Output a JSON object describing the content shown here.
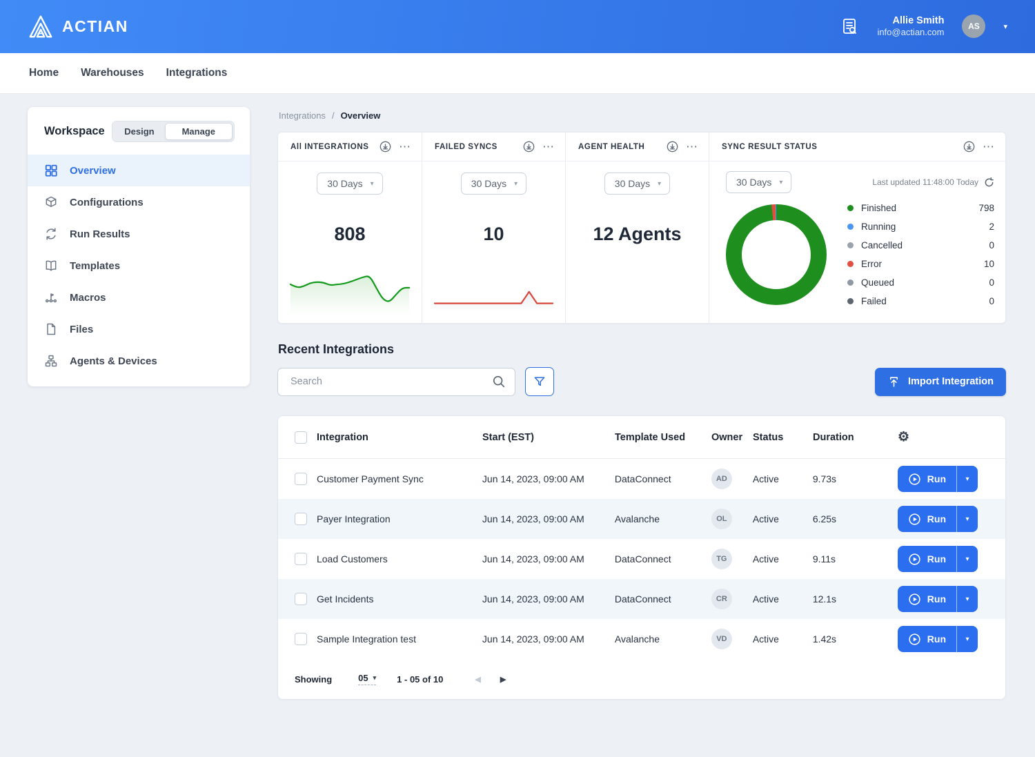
{
  "header": {
    "brand": "ACTIAN",
    "user": {
      "name": "Allie Smith",
      "email": "info@actian.com",
      "initials": "AS"
    }
  },
  "nav": {
    "items": [
      {
        "label": "Home"
      },
      {
        "label": "Warehouses"
      },
      {
        "label": "Integrations"
      }
    ]
  },
  "sidebar": {
    "title": "Workspace",
    "toggle": {
      "options": [
        {
          "label": "Design"
        },
        {
          "label": "Manage"
        }
      ],
      "active": "Manage"
    },
    "items": [
      {
        "label": "Overview",
        "icon": "grid-icon",
        "active": true
      },
      {
        "label": "Configurations",
        "icon": "package-icon",
        "active": false
      },
      {
        "label": "Run Results",
        "icon": "sync-icon",
        "active": false
      },
      {
        "label": "Templates",
        "icon": "book-icon",
        "active": false
      },
      {
        "label": "Macros",
        "icon": "flow-icon",
        "active": false
      },
      {
        "label": "Files",
        "icon": "file-icon",
        "active": false
      },
      {
        "label": "Agents & Devices",
        "icon": "network-icon",
        "active": false
      }
    ]
  },
  "breadcrumb": {
    "parent": "Integrations",
    "separator": "/",
    "current": "Overview"
  },
  "cards": {
    "all_integrations": {
      "title": "All INTEGRATIONS",
      "period": "30 Days",
      "value": "808"
    },
    "failed_syncs": {
      "title": "FAILED SYNCS",
      "period": "30 Days",
      "value": "10"
    },
    "agent_health": {
      "title": "AGENT HEALTH",
      "period": "30 Days",
      "value": "12 Agents"
    },
    "sync_result_status": {
      "title": "SYNC RESULT STATUS",
      "period": "30 Days",
      "last_updated": "Last updated 11:48:00 Today",
      "legend": [
        {
          "label": "Finished",
          "value": "798",
          "color": "#1e8e1e"
        },
        {
          "label": "Running",
          "value": "2",
          "color": "#4b96f3"
        },
        {
          "label": "Cancelled",
          "value": "0",
          "color": "#9aa3ad"
        },
        {
          "label": "Error",
          "value": "10",
          "color": "#e04f3f"
        },
        {
          "label": "Queued",
          "value": "0",
          "color": "#8f98a3"
        },
        {
          "label": "Failed",
          "value": "0",
          "color": "#5d6570"
        }
      ]
    }
  },
  "chart_data": [
    {
      "type": "line",
      "name": "all-integrations-sparkline",
      "title": "All Integrations trend (30 Days)",
      "values": [
        0.57,
        0.5,
        0.53,
        0.6,
        0.62,
        0.61,
        0.55,
        0.57,
        0.58,
        0.62,
        0.67,
        0.72,
        0.75,
        0.5,
        0.26,
        0.2,
        0.36,
        0.5,
        0.5
      ],
      "color": "#13991c",
      "fill": "#dcefdb",
      "smooth": true
    },
    {
      "type": "line",
      "name": "failed-syncs-sparkline",
      "title": "Failed Syncs trend (30 Days)",
      "values": [
        0.14,
        0.14,
        0.14,
        0.14,
        0.14,
        0.14,
        0.14,
        0.14,
        0.14,
        0.14,
        0.14,
        0.14,
        0.42,
        0.14,
        0.14,
        0.14
      ],
      "color": "#d7473c",
      "fill": "#e9edf2",
      "smooth": false
    },
    {
      "type": "pie",
      "name": "sync-result-donut",
      "title": "Sync Result Status (30 Days)",
      "labels": [
        "Finished",
        "Error",
        "Running",
        "Cancelled",
        "Queued",
        "Failed"
      ],
      "values": [
        798,
        10,
        2,
        0,
        0,
        0
      ],
      "colors": [
        "#1e8e1e",
        "#e04f3f",
        "#4b96f3",
        "#9aa3ad",
        "#8f98a3",
        "#5d6570"
      ]
    }
  ],
  "recent": {
    "heading": "Recent Integrations",
    "search": {
      "placeholder": "Search"
    },
    "import_label": "Import Integration",
    "run_label": "Run",
    "table": {
      "columns": [
        "Integration",
        "Start (EST)",
        "Template Used",
        "Owner",
        "Status",
        "Duration"
      ],
      "rows": [
        {
          "integration": "Customer Payment Sync",
          "start": "Jun 14, 2023, 09:00 AM",
          "template": "DataConnect",
          "owner": "AD",
          "status": "Active",
          "duration": "9.73s"
        },
        {
          "integration": "Payer Integration",
          "start": "Jun 14, 2023, 09:00 AM",
          "template": "Avalanche",
          "owner": "OL",
          "status": "Active",
          "duration": "6.25s"
        },
        {
          "integration": "Load Customers",
          "start": "Jun 14, 2023, 09:00 AM",
          "template": "DataConnect",
          "owner": "TG",
          "status": "Active",
          "duration": "9.11s"
        },
        {
          "integration": "Get Incidents",
          "start": "Jun 14, 2023, 09:00 AM",
          "template": "DataConnect",
          "owner": "CR",
          "status": "Active",
          "duration": "12.1s"
        },
        {
          "integration": "Sample Integration test",
          "start": "Jun 14, 2023, 09:00 AM",
          "template": "Avalanche",
          "owner": "VD",
          "status": "Active",
          "duration": "1.42s"
        }
      ]
    },
    "pagination": {
      "showing_label": "Showing",
      "page_size": "05",
      "range": "1 - 05 of 10"
    }
  },
  "icons": {
    "ellipsis": "⋯",
    "caret": "▾",
    "gear": "⚙",
    "prev": "◀",
    "next": "▶"
  },
  "colors": {
    "primary": "#2f6fe4",
    "page_bg": "#edf1f6",
    "row_stripe": "#f1f6fb",
    "active_item_bg": "#eaf2fb"
  }
}
